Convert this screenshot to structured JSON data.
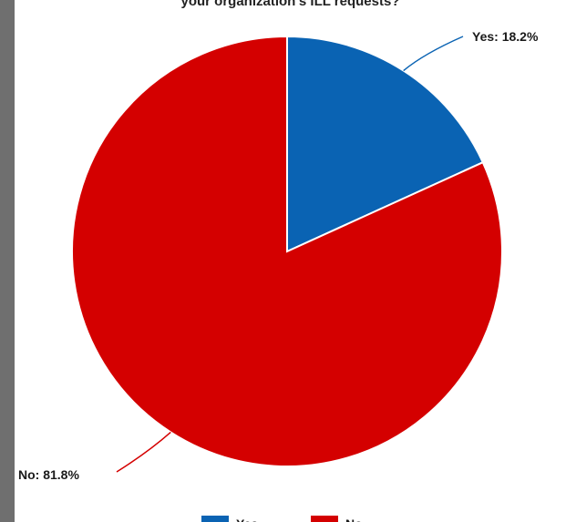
{
  "chart_data": {
    "type": "pie",
    "title": "your organization's ILL requests?",
    "categories": [
      "Yes",
      "No"
    ],
    "values": [
      18.2,
      81.8
    ],
    "colors": [
      "#0a63b3",
      "#d40000"
    ],
    "data_labels": [
      "Yes: 18.2%",
      "No: 81.8%"
    ],
    "legend": [
      "Yes",
      "No"
    ],
    "legend_position": "bottom"
  }
}
